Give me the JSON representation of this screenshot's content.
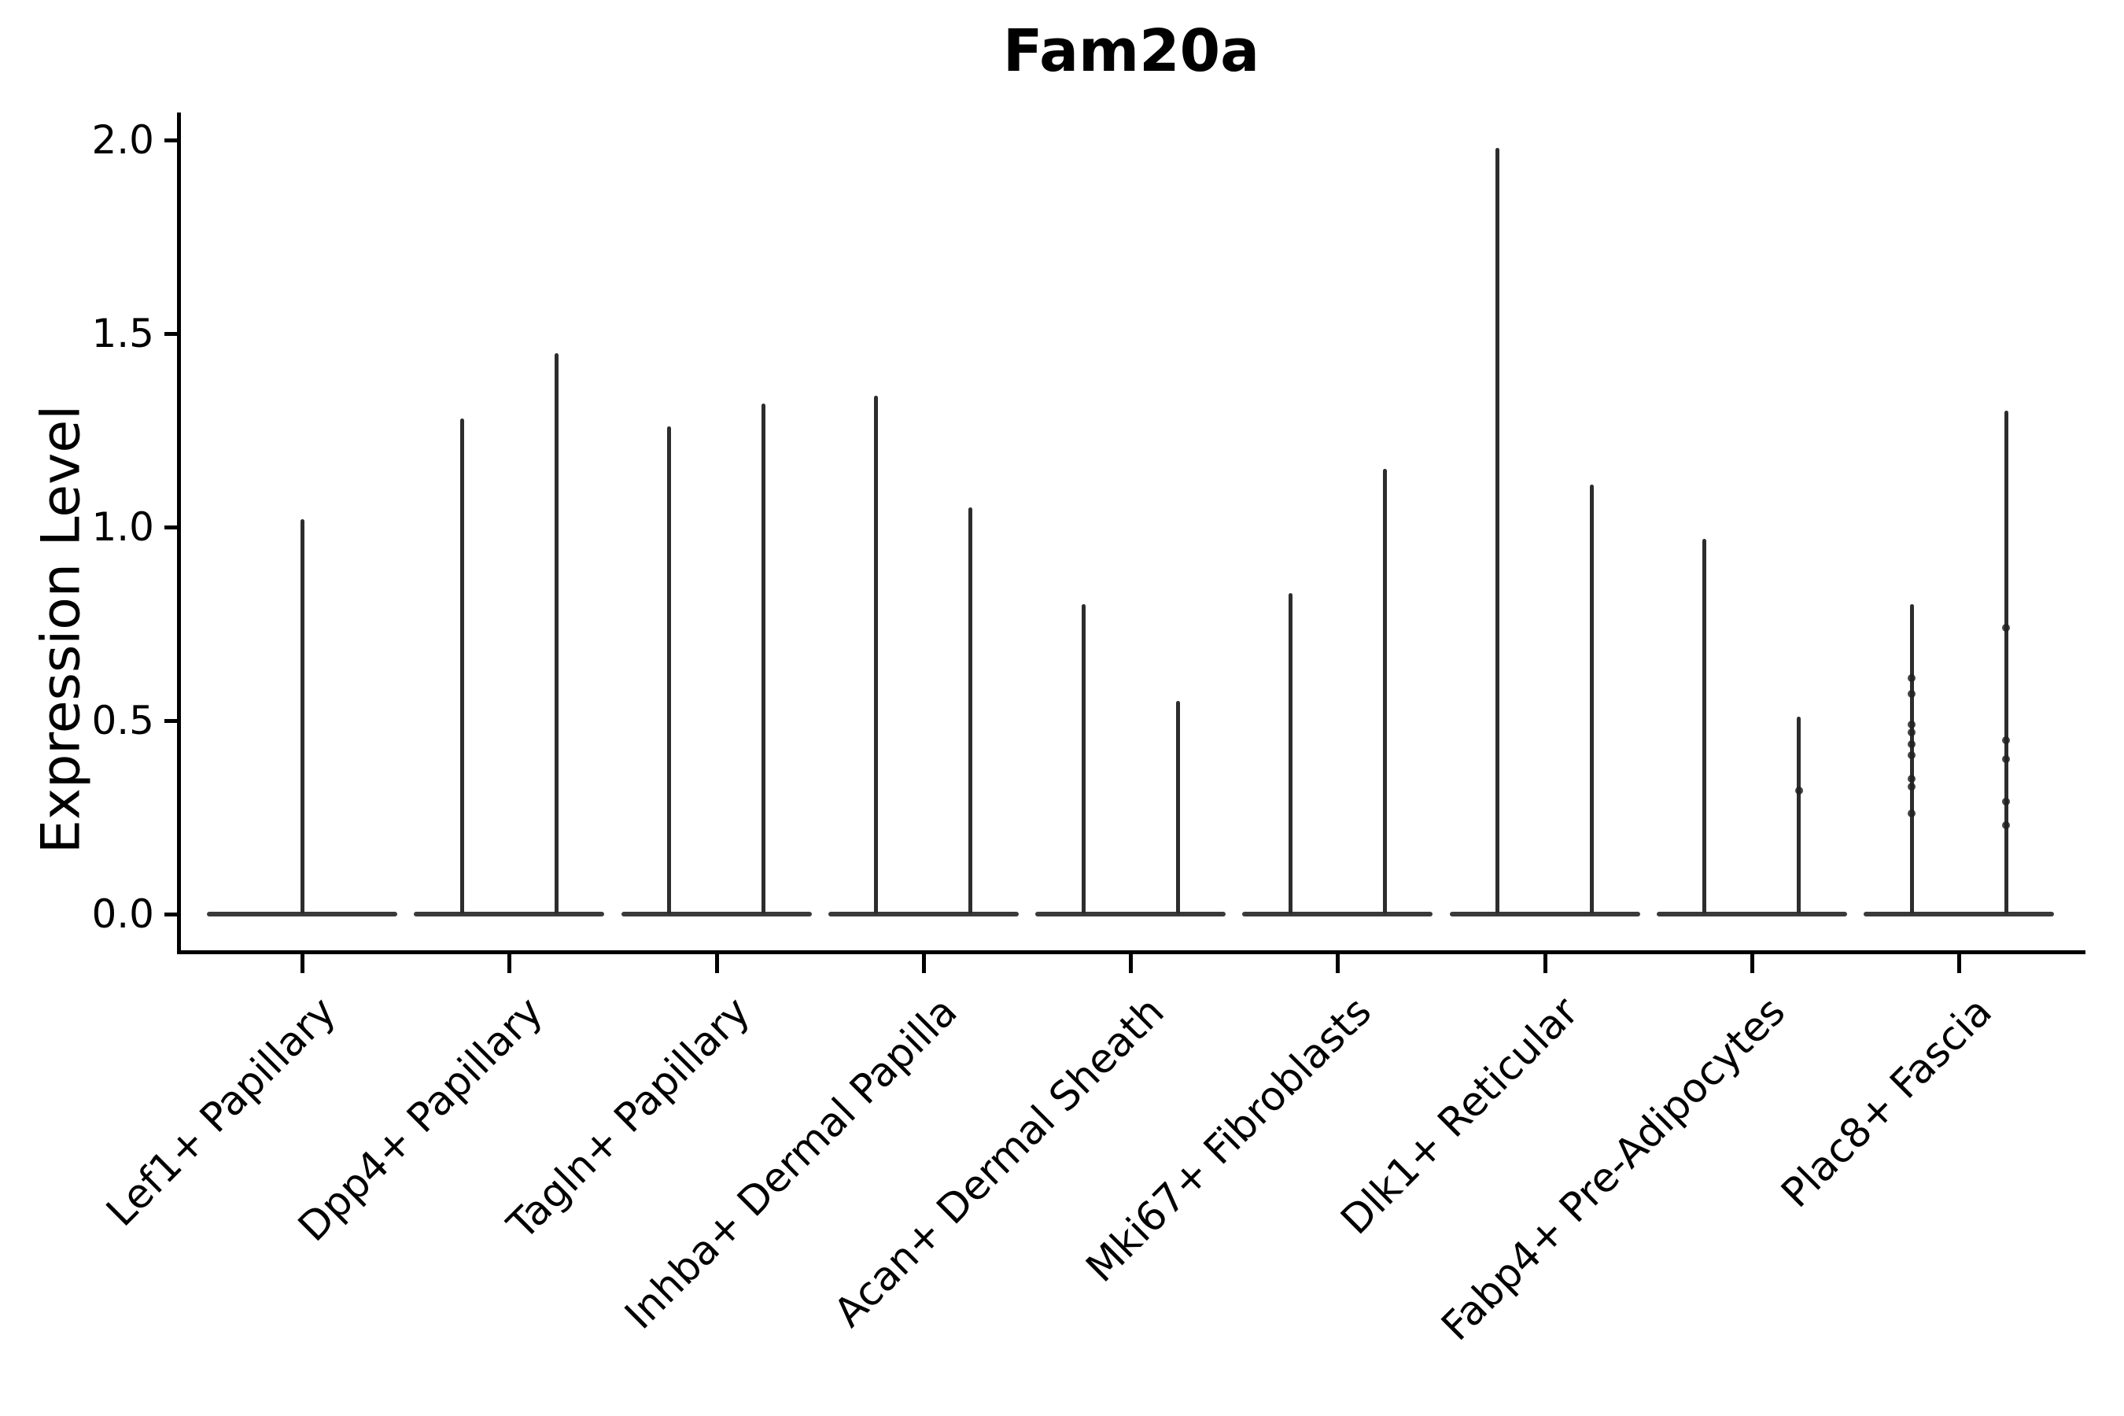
{
  "chart_data": {
    "type": "violin",
    "title": "Fam20a",
    "ylabel": "Expression Level",
    "xlabel": "",
    "ylim": [
      0,
      2.07
    ],
    "grid": false,
    "legend": null,
    "split_violins": true,
    "yticks": [
      {
        "value": 0.0,
        "label": "0.0"
      },
      {
        "value": 0.5,
        "label": "0.5"
      },
      {
        "value": 1.0,
        "label": "1.0"
      },
      {
        "value": 1.5,
        "label": "1.5"
      },
      {
        "value": 2.0,
        "label": "2.0"
      }
    ],
    "categories": [
      {
        "label": "Lef1+ Papillary",
        "violins": [
          {
            "max": 1.02,
            "points": []
          }
        ]
      },
      {
        "label": "Dpp4+ Papillary",
        "violins": [
          {
            "max": 1.28,
            "points": []
          },
          {
            "max": 1.45,
            "points": []
          }
        ]
      },
      {
        "label": "Tagln+ Papillary",
        "violins": [
          {
            "max": 1.26,
            "points": []
          },
          {
            "max": 1.32,
            "points": []
          }
        ]
      },
      {
        "label": "Inhba+ Dermal Papilla",
        "violins": [
          {
            "max": 1.34,
            "points": []
          },
          {
            "max": 1.05,
            "points": []
          }
        ]
      },
      {
        "label": "Acan+ Dermal Sheath",
        "violins": [
          {
            "max": 0.8,
            "points": []
          },
          {
            "max": 0.55,
            "points": []
          }
        ]
      },
      {
        "label": "Mki67+ Fibroblasts",
        "violins": [
          {
            "max": 0.83,
            "points": []
          },
          {
            "max": 1.15,
            "points": []
          }
        ]
      },
      {
        "label": "Dlk1+ Reticular",
        "violins": [
          {
            "max": 1.98,
            "points": []
          },
          {
            "max": 1.11,
            "points": []
          }
        ]
      },
      {
        "label": "Fabp4+ Pre-Adipocytes",
        "violins": [
          {
            "max": 0.97,
            "points": []
          },
          {
            "max": 0.51,
            "points": [
              0.32
            ]
          }
        ]
      },
      {
        "label": "Plac8+ Fascia",
        "violins": [
          {
            "max": 0.8,
            "points": [
              0.61,
              0.57,
              0.49,
              0.47,
              0.44,
              0.41,
              0.35,
              0.33,
              0.26
            ]
          },
          {
            "max": 1.3,
            "points": [
              0.74,
              0.45,
              0.4,
              0.29,
              0.23
            ]
          }
        ]
      }
    ],
    "colors": {
      "violin_outline": "#2d2d2d",
      "violin_base": "#3a3a3a",
      "dot": "#222222",
      "axis": "#000000",
      "text": "#000000",
      "background": "#ffffff"
    }
  }
}
